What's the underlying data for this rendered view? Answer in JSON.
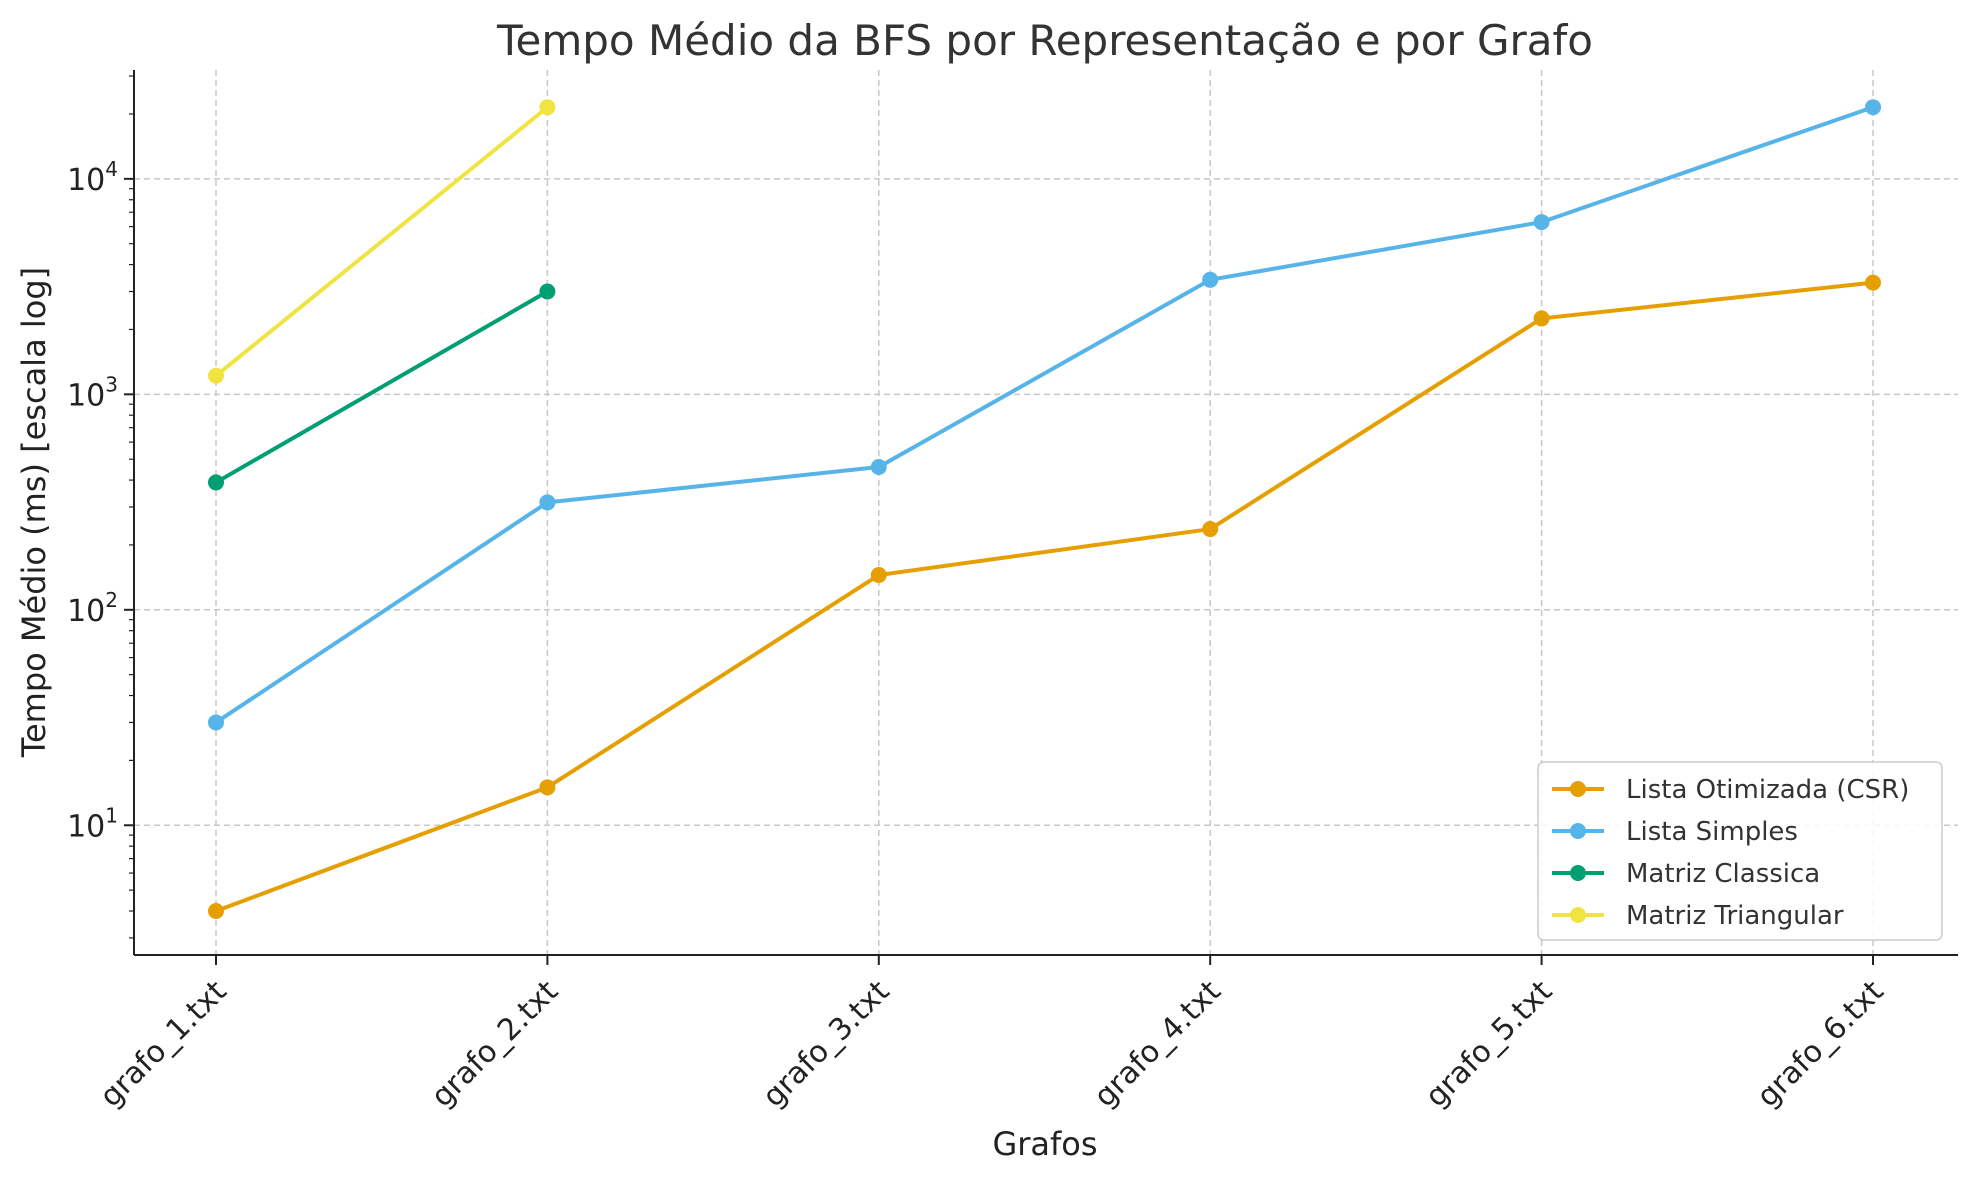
{
  "chart_data": {
    "type": "line",
    "title": "Tempo Médio da BFS por Representação e por Grafo",
    "xlabel": "Grafos",
    "ylabel": "Tempo Médio (ms) [escala log]",
    "yscale": "log",
    "ylim": [
      2.5,
      32000
    ],
    "yticks": [
      {
        "base": "10",
        "exp": "1",
        "value": 10
      },
      {
        "base": "10",
        "exp": "2",
        "value": 100
      },
      {
        "base": "10",
        "exp": "3",
        "value": 1000
      },
      {
        "base": "10",
        "exp": "4",
        "value": 10000
      }
    ],
    "categories": [
      "grafo_1.txt",
      "grafo_2.txt",
      "grafo_3.txt",
      "grafo_4.txt",
      "grafo_5.txt",
      "grafo_6.txt"
    ],
    "grid": true,
    "legend_position": "bottom-right",
    "series": [
      {
        "name": "Lista Otimizada (CSR)",
        "color": "#E69F00",
        "values": [
          4,
          15,
          145,
          237,
          2250,
          3300
        ]
      },
      {
        "name": "Lista Simples",
        "color": "#56B4E9",
        "values": [
          30,
          315,
          460,
          3400,
          6300,
          21500
        ]
      },
      {
        "name": "Matriz Classica",
        "color": "#009E73",
        "values": [
          390,
          3000,
          null,
          null,
          null,
          null
        ]
      },
      {
        "name": "Matriz Triangular",
        "color": "#F0E442",
        "values": [
          1220,
          21500,
          null,
          null,
          null,
          null
        ]
      }
    ]
  }
}
